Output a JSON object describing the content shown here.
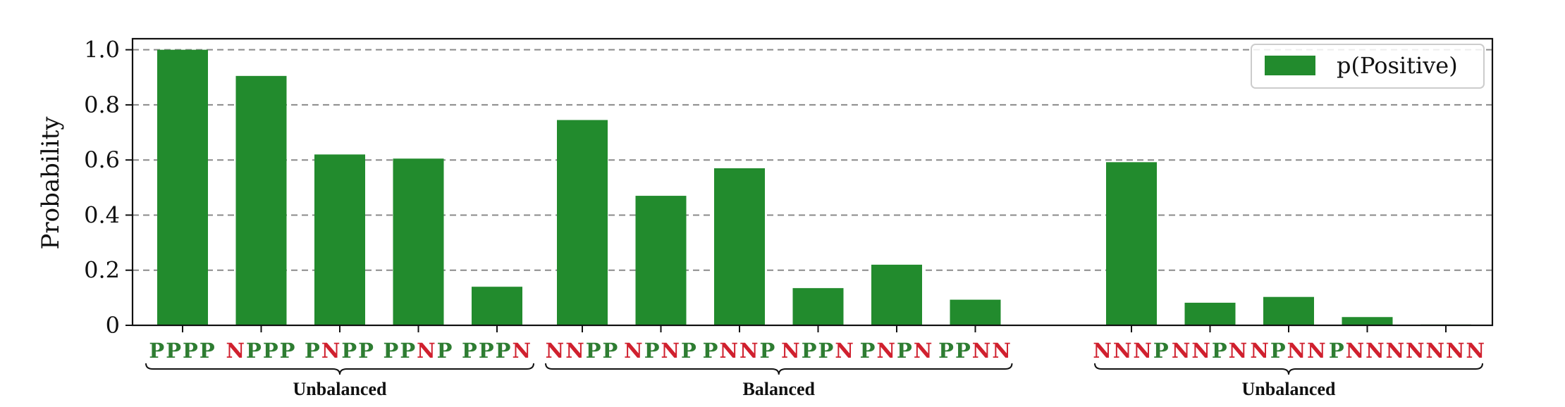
{
  "chart_data": {
    "type": "bar",
    "ylabel": "Probability",
    "xlabel": "",
    "ylim": [
      0,
      1.04
    ],
    "yticks": [
      "0",
      "0.2",
      "0.4",
      "0.6",
      "0.8",
      "1.0"
    ],
    "ytick_values": [
      0,
      0.2,
      0.4,
      0.6,
      0.8,
      1.0
    ],
    "grid": "horizontal-dashed",
    "legend_position": "top-right",
    "series": [
      {
        "name": "p(Positive)",
        "color": "#228b2d",
        "values": [
          1.0,
          0.905,
          0.62,
          0.605,
          0.14,
          0.745,
          0.47,
          0.57,
          0.135,
          0.22,
          0.093,
          0.592,
          0.082,
          0.103,
          0.03,
          0.003
        ]
      }
    ],
    "categories": [
      "PPPP",
      "NPPP",
      "PNPP",
      "PPNP",
      "PPPN",
      "NNPP",
      "NPNP",
      "PNNP",
      "NPPN",
      "PNPN",
      "PPNN",
      "NNNP",
      "NNPN",
      "NPNN",
      "PNNN",
      "NNNN"
    ],
    "category_letter_colors": {
      "P": "#2e7d32",
      "N": "#d0202e"
    },
    "groups": [
      {
        "label": "Unbalanced",
        "start": 0,
        "end": 4
      },
      {
        "label": "Balanced",
        "start": 5,
        "end": 10
      },
      {
        "label": "Unbalanced",
        "start": 11,
        "end": 15
      }
    ]
  }
}
